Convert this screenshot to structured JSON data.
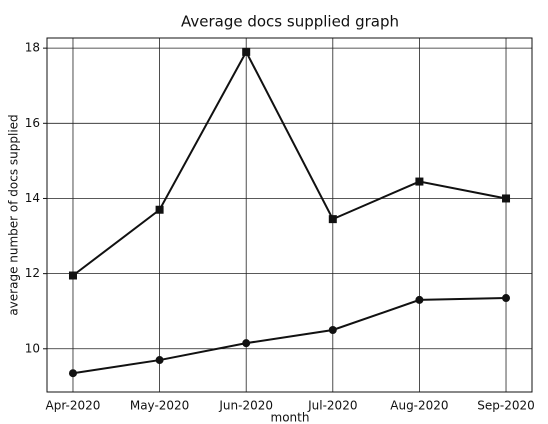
{
  "chart_data": {
    "type": "line",
    "title": "Average docs supplied graph",
    "x_label": "month",
    "y_label": "average number of docs supplied",
    "categories": [
      "Apr-2020",
      "May-2020",
      "Jun-2020",
      "Jul-2020",
      "Aug-2020",
      "Sep-2020"
    ],
    "series": [
      {
        "color": "#111111",
        "marker": "square",
        "values": [
          11.95,
          13.7,
          17.9,
          13.45,
          14.45,
          14.0
        ]
      },
      {
        "color": "#111111",
        "marker": "circle",
        "values": [
          9.35,
          9.7,
          10.15,
          10.5,
          11.3,
          11.35
        ]
      }
    ],
    "ylim": [
      8.85,
      18.27
    ],
    "yticks": [
      10,
      12,
      14,
      16,
      18
    ],
    "grid": true
  }
}
